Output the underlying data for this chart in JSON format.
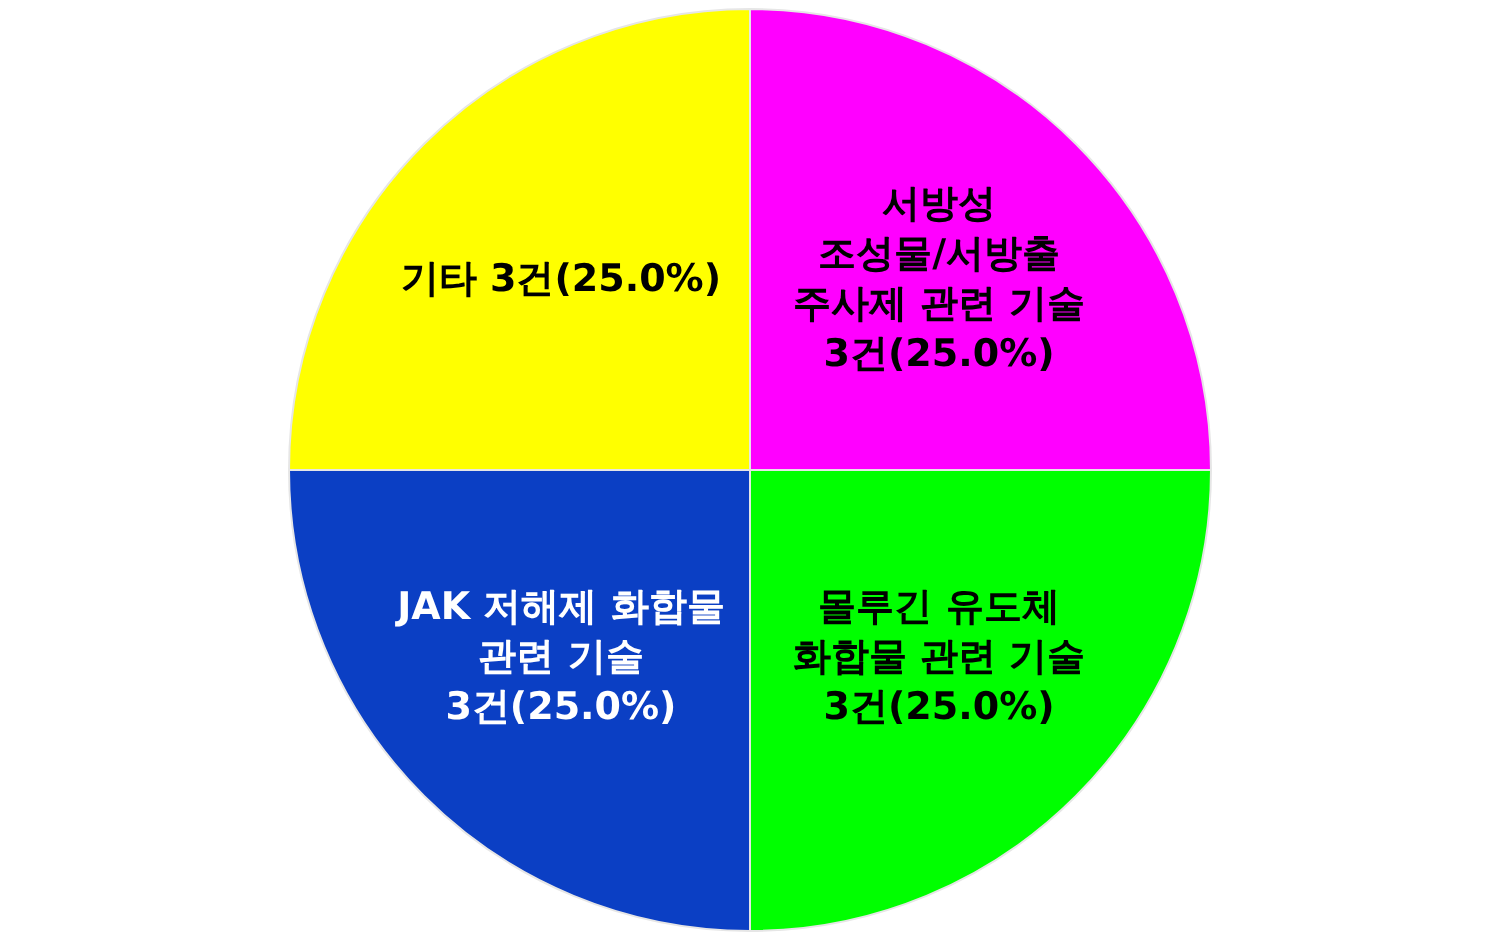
{
  "chart_data": {
    "type": "pie",
    "categories": [
      "서방성 조성물/서방출 주사제 관련 기술",
      "몰루긴 유도체 화합물 관련 기술",
      "JAK 저해제 화합물 관련 기술",
      "기타"
    ],
    "values": [
      3,
      3,
      3,
      3
    ],
    "value_labels": [
      "3건(25.0%)",
      "3건(25.0%)",
      "3건(25.0%)",
      "3건(25.0%)"
    ],
    "colors": [
      "#ff00ff",
      "#00ff00",
      "#0b3fc4",
      "#ffff00"
    ]
  }
}
